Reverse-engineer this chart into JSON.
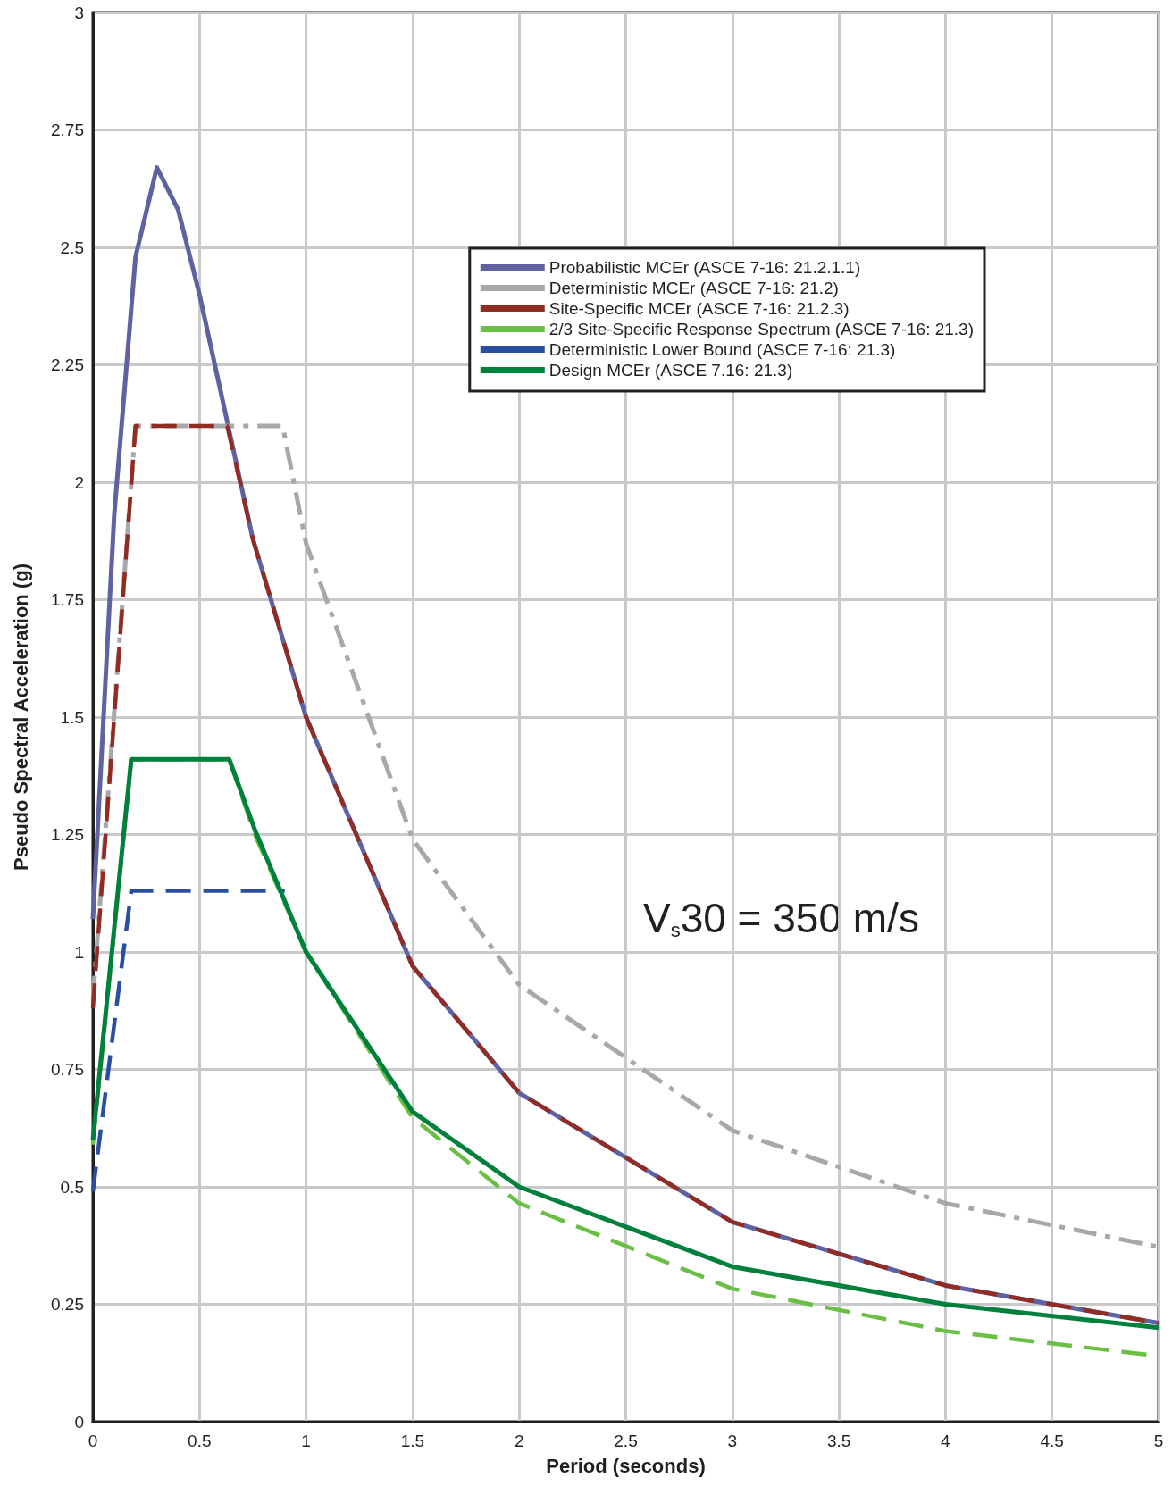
{
  "chart_data": {
    "type": "line",
    "xlabel": "Period (seconds)",
    "ylabel": "Pseudo Spectral Acceleration (g)",
    "xlim": [
      0,
      5
    ],
    "xticks": [
      0,
      0.5,
      1,
      1.5,
      2,
      2.5,
      3,
      3.5,
      4,
      4.5,
      5
    ],
    "ylim": [
      0,
      3
    ],
    "yticks": [
      0,
      0.25,
      0.5,
      0.75,
      1,
      1.25,
      1.5,
      1.75,
      2,
      2.25,
      2.5,
      2.75,
      3
    ],
    "grid": true,
    "legend": "top right",
    "marker": "none",
    "annotations": [
      "V$_{s}$30 = 350 m/s"
    ],
    "series": [
      {
        "name": "Probabilistic MCEr (ASCE 7-16: 21.2.1.1)",
        "color": "#5e62a0",
        "line_style": "solid",
        "x": [
          0,
          0.1,
          0.2,
          0.3,
          0.4,
          0.5,
          0.75,
          1,
          1.5,
          2,
          3,
          4,
          5
        ],
        "values": [
          1.07,
          1.93,
          2.48,
          2.67,
          2.58,
          2.4,
          1.88,
          1.5,
          0.97,
          0.7,
          0.425,
          0.29,
          0.21
        ]
      },
      {
        "name": "Deterministic MCEr (ASCE 7-16: 21.2)",
        "color": "#a7a8ab",
        "line_style": "dashdot",
        "x": [
          0,
          0.2,
          0.89,
          1,
          1.5,
          2,
          3,
          4,
          5
        ],
        "values": [
          0.9,
          2.12,
          2.12,
          1.87,
          1.24,
          0.93,
          0.62,
          0.465,
          0.372
        ]
      },
      {
        "name": "Site-Specific MCEr (ASCE 7-16: 21.2.3)",
        "color": "#922b21",
        "line_style": "dashed",
        "x": [
          0,
          0.2,
          0.63,
          0.75,
          1,
          1.5,
          2,
          3,
          4,
          5
        ],
        "values": [
          0.88,
          2.12,
          2.12,
          1.88,
          1.5,
          0.97,
          0.7,
          0.425,
          0.29,
          0.21
        ]
      },
      {
        "name": "2/3 Site-Specific Response Spectrum (ASCE 7-16: 21.3)",
        "color": "#6abf45",
        "line_style": "dashed",
        "x": [
          0,
          0.18,
          0.64,
          0.76,
          1,
          1.5,
          2,
          3,
          4,
          5
        ],
        "values": [
          0.59,
          1.41,
          1.41,
          1.25,
          1.0,
          0.647,
          0.465,
          0.283,
          0.193,
          0.14
        ]
      },
      {
        "name": "Deterministic Lower Bound (ASCE 7-16: 21.3)",
        "color": "#2a4fa0",
        "line_style": "dashed",
        "x": [
          0,
          0.18,
          0.9
        ],
        "values": [
          0.49,
          1.13,
          1.13
        ]
      },
      {
        "name": "Design MCEr (ASCE 7.16: 21.3)",
        "color": "#00803d",
        "line_style": "solid",
        "x": [
          0,
          0.18,
          0.64,
          0.76,
          1,
          1.5,
          2,
          3,
          4,
          5
        ],
        "values": [
          0.6,
          1.41,
          1.41,
          1.26,
          1.0,
          0.66,
          0.5,
          0.33,
          0.25,
          0.2
        ]
      }
    ]
  }
}
